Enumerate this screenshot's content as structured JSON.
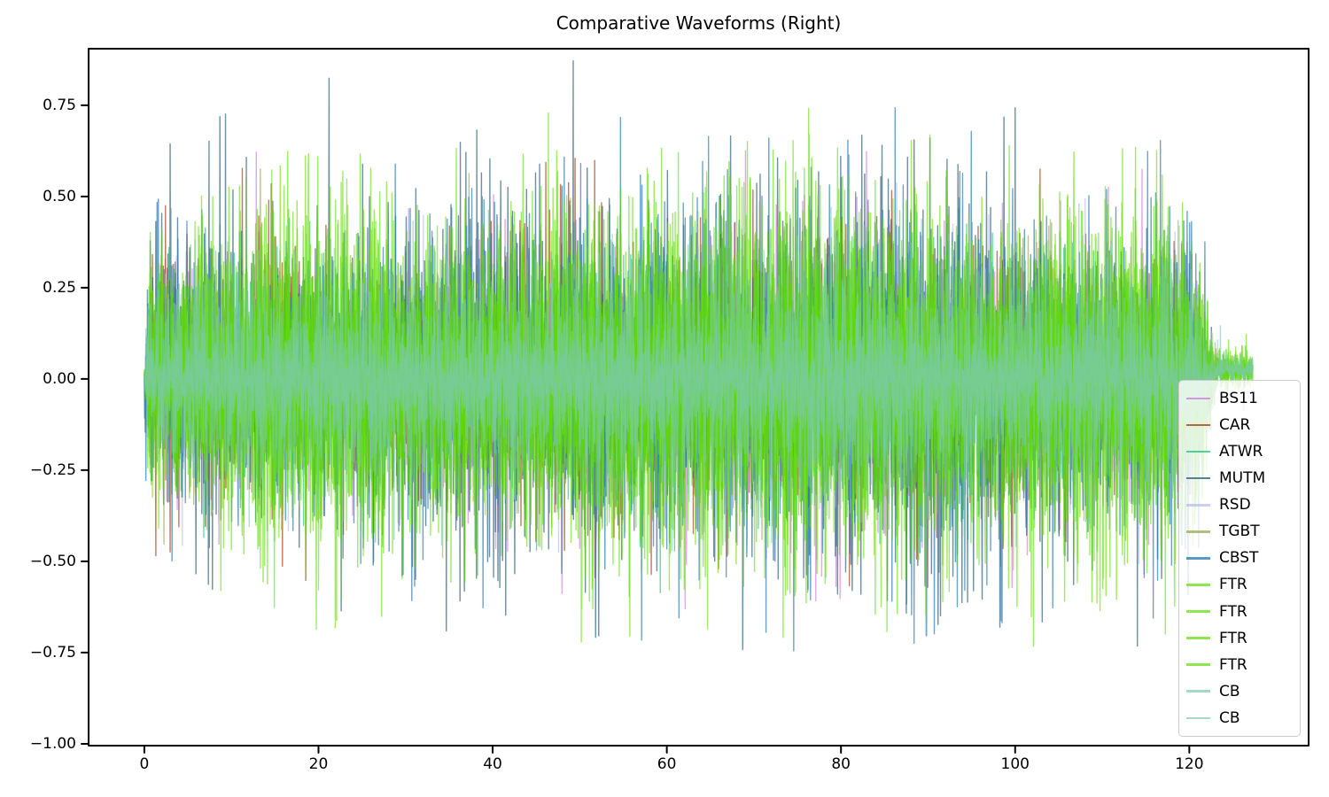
{
  "chart_data": {
    "type": "line",
    "title": "Comparative Waveforms (Right)",
    "xlabel": "",
    "ylabel": "",
    "xlim": [
      -6.4,
      133.7
    ],
    "ylim": [
      -1.005,
      0.905
    ],
    "x_ticks": [
      0,
      20,
      40,
      60,
      80,
      100,
      120
    ],
    "x_tick_labels": [
      "0",
      "20",
      "40",
      "60",
      "80",
      "100",
      "120"
    ],
    "y_ticks": [
      0.75,
      0.5,
      0.25,
      0,
      -0.25,
      -0.5,
      -0.75,
      -1
    ],
    "y_tick_labels": [
      "0.75",
      "0.50",
      "0.25",
      "0.00",
      "−0.25",
      "−0.50",
      "−0.75",
      "−1.00"
    ],
    "grid": false,
    "legend_position": "lower right",
    "background_color": "#ffffff",
    "axis_color": "#000000",
    "text_color": "#000000",
    "samples_per_unit": 28,
    "noise_mean": 0.33,
    "tail_offset": 0.025,
    "tail_start": 123,
    "envelope": [
      [
        0,
        0.12
      ],
      [
        0.25,
        0.55
      ],
      [
        0.8,
        0.8
      ],
      [
        2.5,
        0.92
      ],
      [
        6,
        0.98
      ],
      [
        15,
        1.0
      ],
      [
        35,
        1.0
      ],
      [
        50,
        0.97
      ],
      [
        60,
        1.0
      ],
      [
        68,
        1.08
      ],
      [
        78,
        1.12
      ],
      [
        88,
        1.08
      ],
      [
        96,
        1.02
      ],
      [
        104,
        1.03
      ],
      [
        112,
        1.02
      ],
      [
        117,
        0.99
      ],
      [
        119.5,
        0.95
      ],
      [
        121,
        0.78
      ],
      [
        122,
        0.42
      ],
      [
        122.8,
        0.18
      ],
      [
        123.5,
        0.13
      ],
      [
        127.3,
        0.12
      ]
    ],
    "series": [
      {
        "name": "BS11",
        "color": "#CE6FD8",
        "alpha": 0.6,
        "amp": 0.3,
        "max_abs": 0.86,
        "seed": 101,
        "duration": 123.0
      },
      {
        "name": "CAR",
        "color": "#A8431E",
        "alpha": 0.7,
        "amp": 0.3,
        "max_abs": 0.8,
        "seed": 202,
        "duration": 124.2
      },
      {
        "name": "ATWR",
        "color": "#1FC47E",
        "alpha": 0.65,
        "amp": 0.27,
        "max_abs": 0.68,
        "seed": 303,
        "duration": 127.3
      },
      {
        "name": "MUTM",
        "color": "#31617E",
        "alpha": 0.7,
        "amp": 0.42,
        "max_abs": 0.97,
        "seed": 404,
        "duration": 122.6
      },
      {
        "name": "RSD",
        "color": "#AEB4E8",
        "alpha": 0.55,
        "amp": 0.24,
        "max_abs": 0.6,
        "seed": 505,
        "duration": 125.0
      },
      {
        "name": "TGBT",
        "color": "#98A84E",
        "alpha": 0.65,
        "amp": 0.28,
        "max_abs": 0.75,
        "seed": 606,
        "duration": 124.5
      },
      {
        "name": "CBST",
        "color": "#2F7EB5",
        "alpha": 0.7,
        "amp": 0.42,
        "max_abs": 0.87,
        "seed": 707,
        "duration": 122.6
      },
      {
        "name": "FTR",
        "color": "#5FDC05",
        "alpha": 0.6,
        "amp": 0.38,
        "max_abs": 0.8,
        "seed": 808,
        "duration": 127.3
      },
      {
        "name": "FTR",
        "color": "#5FDC05",
        "alpha": 0.6,
        "amp": 0.38,
        "max_abs": 0.8,
        "seed": 909,
        "duration": 127.3
      },
      {
        "name": "FTR",
        "color": "#5FDC05",
        "alpha": 0.6,
        "amp": 0.38,
        "max_abs": 0.8,
        "seed": 1010,
        "duration": 127.3
      },
      {
        "name": "FTR",
        "color": "#5FDC05",
        "alpha": 0.6,
        "amp": 0.38,
        "max_abs": 0.8,
        "seed": 1111,
        "duration": 127.3
      },
      {
        "name": "CB",
        "color": "#7CC9AC",
        "alpha": 0.6,
        "amp": 0.26,
        "max_abs": 0.55,
        "seed": 1212,
        "duration": 127.3
      },
      {
        "name": "CB",
        "color": "#7CC9AC",
        "alpha": 0.6,
        "amp": 0.26,
        "max_abs": 0.55,
        "seed": 1313,
        "duration": 127.3
      }
    ]
  }
}
